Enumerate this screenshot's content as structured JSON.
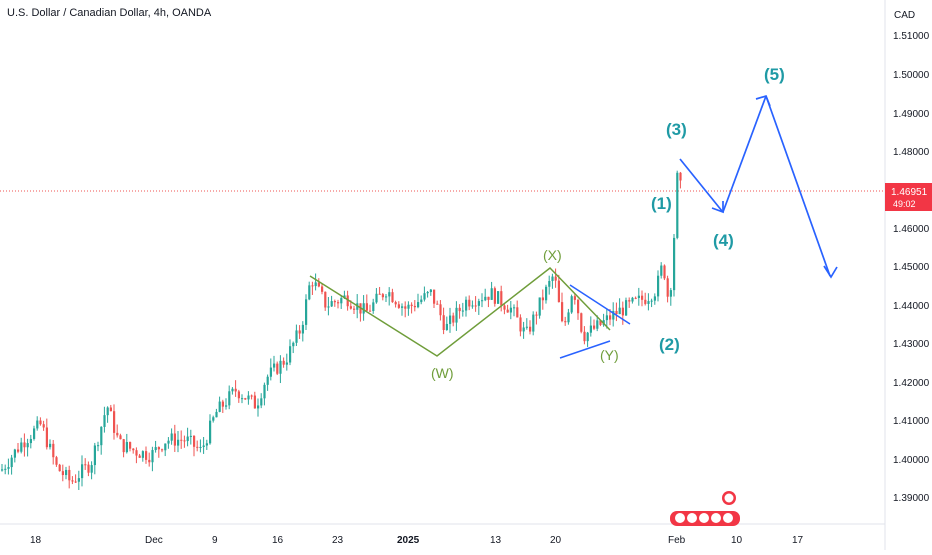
{
  "header": {
    "symbol_title": "U.S. Dollar / Canadian Dollar, 4h, OANDA",
    "currency": "CAD"
  },
  "price_badge": {
    "price": "1.46951",
    "countdown": "49:02"
  },
  "colors": {
    "up_candle": "#26a69a",
    "down_candle": "#ef5350",
    "projection_line": "#2962ff",
    "wave_label": "#1f9aa5",
    "correction_label": "#6f9d3a",
    "badge": "#f23645"
  },
  "wave_labels": {
    "w1": "(1)",
    "w2": "(2)",
    "w3": "(3)",
    "w4": "(4)",
    "w5": "(5)",
    "wW": "(W)",
    "wX": "(X)",
    "wY": "(Y)"
  },
  "chart_data": {
    "type": "candlestick",
    "y_axis_labels": [
      "1.51000",
      "1.50000",
      "1.49000",
      "1.48000",
      "1.46000",
      "1.45000",
      "1.44000",
      "1.43000",
      "1.42000",
      "1.41000",
      "1.40000",
      "1.39000"
    ],
    "x_axis_labels": [
      "18",
      "Dec",
      "9",
      "16",
      "23",
      "2025",
      "13",
      "20",
      "Feb",
      "10",
      "17"
    ],
    "path": [
      [
        0,
        1.397
      ],
      [
        20,
        1.404
      ],
      [
        40,
        1.409
      ],
      [
        55,
        1.398
      ],
      [
        70,
        1.394
      ],
      [
        90,
        1.399
      ],
      [
        106,
        1.414
      ],
      [
        118,
        1.404
      ],
      [
        135,
        1.402
      ],
      [
        150,
        1.401
      ],
      [
        165,
        1.405
      ],
      [
        185,
        1.405
      ],
      [
        200,
        1.402
      ],
      [
        215,
        1.412
      ],
      [
        235,
        1.418
      ],
      [
        255,
        1.414
      ],
      [
        265,
        1.421
      ],
      [
        285,
        1.426
      ],
      [
        300,
        1.434
      ],
      [
        310,
        1.447
      ],
      [
        325,
        1.44
      ],
      [
        345,
        1.442
      ],
      [
        365,
        1.438
      ],
      [
        385,
        1.444
      ],
      [
        405,
        1.439
      ],
      [
        430,
        1.443
      ],
      [
        445,
        1.434
      ],
      [
        465,
        1.441
      ],
      [
        490,
        1.443
      ],
      [
        510,
        1.439
      ],
      [
        525,
        1.432
      ],
      [
        540,
        1.441
      ],
      [
        553,
        1.448
      ],
      [
        562,
        1.433
      ],
      [
        572,
        1.445
      ],
      [
        582,
        1.432
      ],
      [
        600,
        1.435
      ],
      [
        615,
        1.438
      ],
      [
        630,
        1.44
      ],
      [
        645,
        1.442
      ],
      [
        655,
        1.444
      ],
      [
        662,
        1.451
      ],
      [
        668,
        1.44
      ],
      [
        672,
        1.453
      ],
      [
        676,
        1.473
      ],
      [
        680,
        1.47
      ]
    ]
  }
}
